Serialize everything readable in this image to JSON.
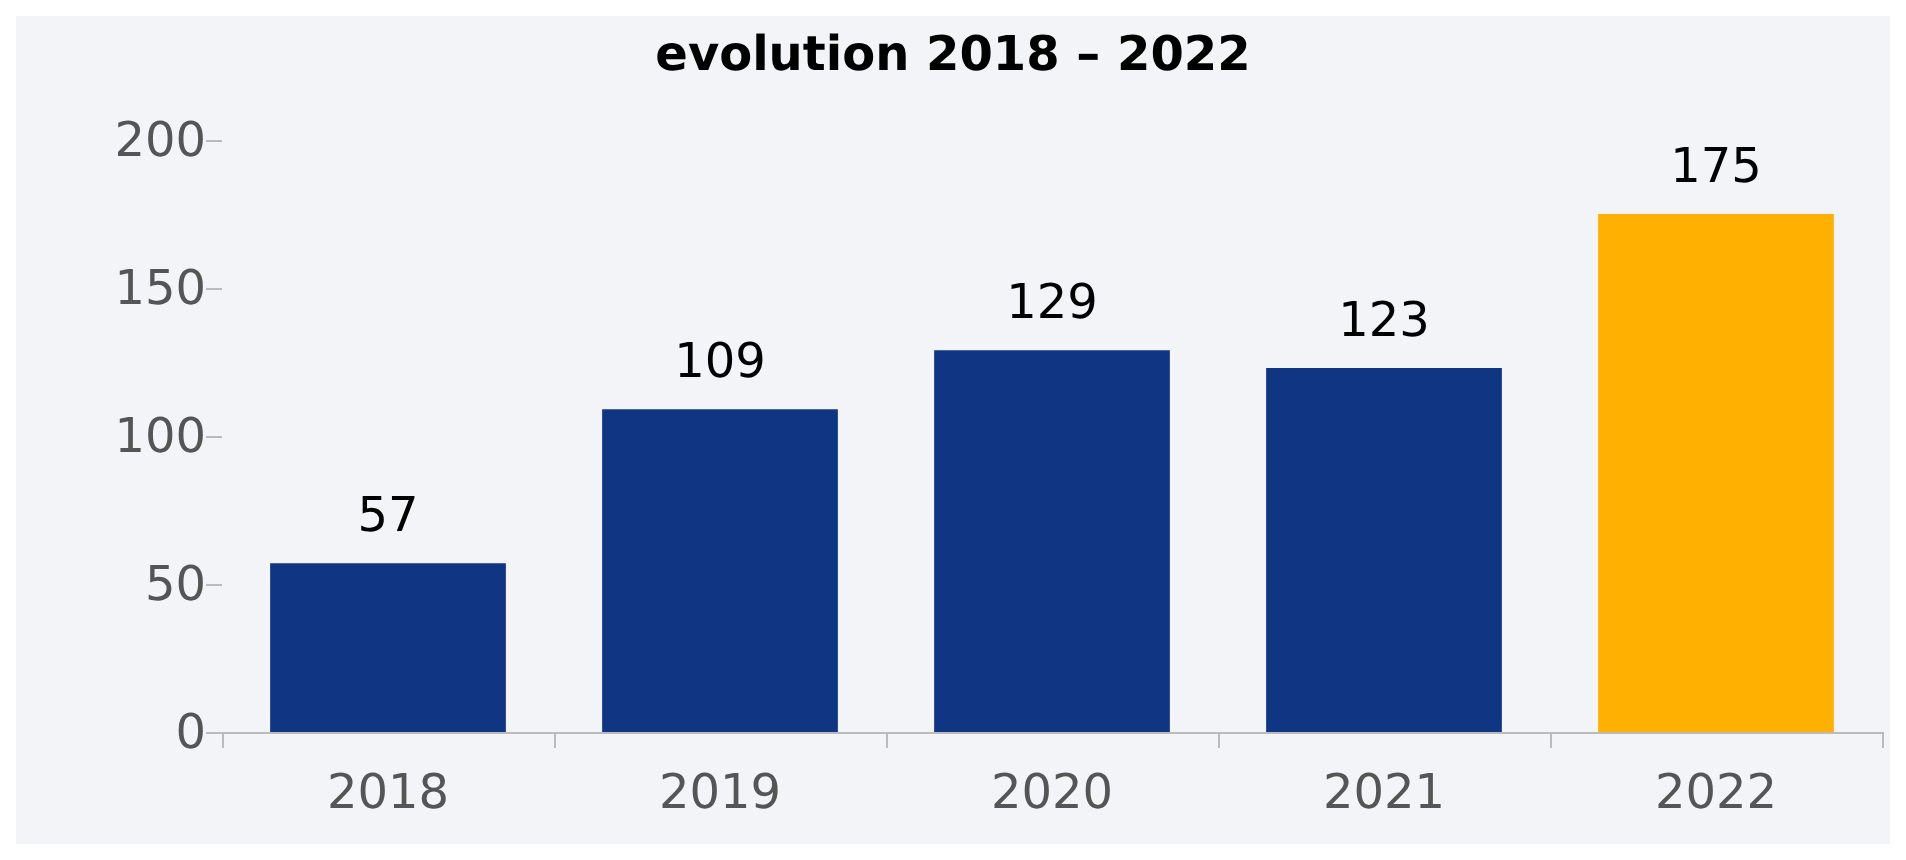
{
  "chart_data": {
    "type": "bar",
    "title": "evolution 2018 – 2022",
    "categories": [
      "2018",
      "2019",
      "2020",
      "2021",
      "2022"
    ],
    "values": [
      57,
      109,
      129,
      123,
      175
    ],
    "colors": [
      "#103582",
      "#103582",
      "#103582",
      "#103582",
      "#ffb000"
    ],
    "ylim": [
      0,
      200
    ],
    "yticks": [
      0,
      50,
      100,
      150,
      200
    ],
    "grid": false,
    "data_labels": true
  }
}
